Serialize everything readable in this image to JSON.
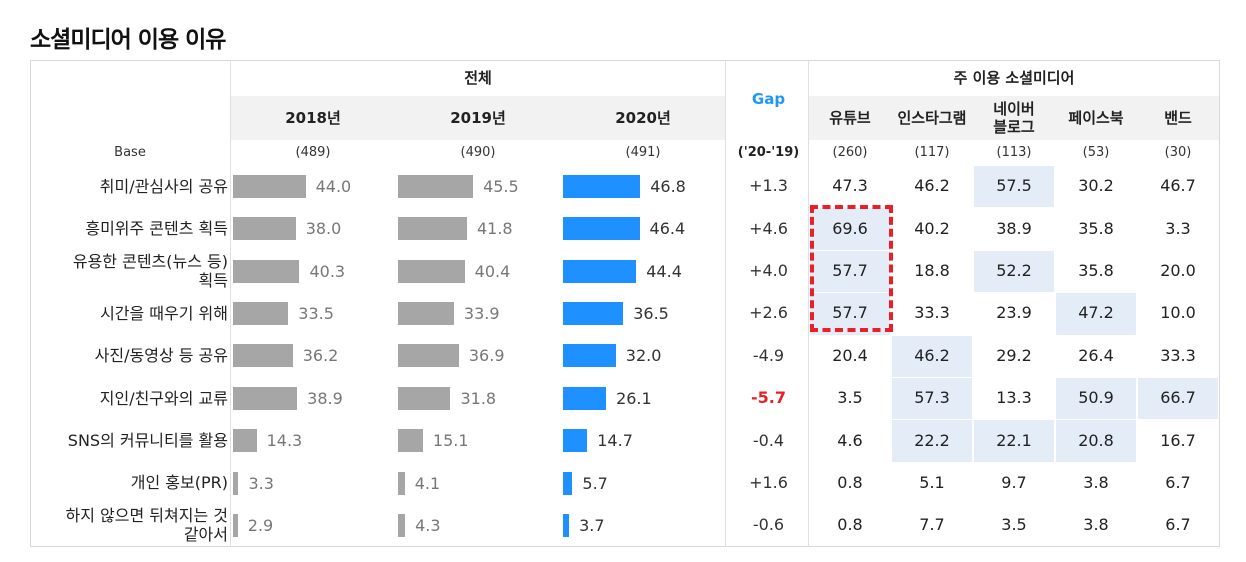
{
  "title": "소셜미디어 이용 이유",
  "headers": {
    "overall": "전체",
    "gap": "Gap",
    "platforms_group": "주 이용 소셜미디어",
    "base_label": "Base",
    "gap_base": "('20-'19)",
    "years": [
      "2018년",
      "2019년",
      "2020년"
    ],
    "platforms": [
      "유튜브",
      "인스타그램",
      "네이버\n블로그",
      "페이스북",
      "밴드"
    ],
    "year_bases": [
      "(489)",
      "(490)",
      "(491)"
    ],
    "platform_bases": [
      "(260)",
      "(117)",
      "(113)",
      "(53)",
      "(30)"
    ]
  },
  "rows": [
    {
      "label": "취미/관심사의 공유",
      "y2018": "44.0",
      "y2019": "45.5",
      "y2020": "46.8",
      "gap": "+1.3",
      "platforms": [
        "47.3",
        "46.2",
        "57.5",
        "30.2",
        "46.7"
      ]
    },
    {
      "label": "흥미위주 콘텐츠 획득",
      "y2018": "38.0",
      "y2019": "41.8",
      "y2020": "46.4",
      "gap": "+4.6",
      "platforms": [
        "69.6",
        "40.2",
        "38.9",
        "35.8",
        "3.3"
      ]
    },
    {
      "label": "유용한 콘텐츠(뉴스 등)\n획득",
      "y2018": "40.3",
      "y2019": "40.4",
      "y2020": "44.4",
      "gap": "+4.0",
      "platforms": [
        "57.7",
        "18.8",
        "52.2",
        "35.8",
        "20.0"
      ]
    },
    {
      "label": "시간을 때우기 위해",
      "y2018": "33.5",
      "y2019": "33.9",
      "y2020": "36.5",
      "gap": "+2.6",
      "platforms": [
        "57.7",
        "33.3",
        "23.9",
        "47.2",
        "10.0"
      ]
    },
    {
      "label": "사진/동영상 등 공유",
      "y2018": "36.2",
      "y2019": "36.9",
      "y2020": "32.0",
      "gap": "-4.9",
      "platforms": [
        "20.4",
        "46.2",
        "29.2",
        "26.4",
        "33.3"
      ]
    },
    {
      "label": "지인/친구와의 교류",
      "y2018": "38.9",
      "y2019": "31.8",
      "y2020": "26.1",
      "gap": "-5.7",
      "platforms": [
        "3.5",
        "57.3",
        "13.3",
        "50.9",
        "66.7"
      ]
    },
    {
      "label": "SNS의 커뮤니티를 활용",
      "y2018": "14.3",
      "y2019": "15.1",
      "y2020": "14.7",
      "gap": "-0.4",
      "platforms": [
        "4.6",
        "22.2",
        "22.1",
        "20.8",
        "16.7"
      ]
    },
    {
      "label": "개인 홍보(PR)",
      "y2018": "3.3",
      "y2019": "4.1",
      "y2020": "5.7",
      "gap": "+1.6",
      "platforms": [
        "0.8",
        "5.1",
        "9.7",
        "3.8",
        "6.7"
      ]
    },
    {
      "label": "하지 않으면 뒤쳐지는 것\n같아서",
      "y2018": "2.9",
      "y2019": "4.3",
      "y2020": "3.7",
      "gap": "-0.6",
      "platforms": [
        "0.8",
        "7.7",
        "3.5",
        "3.8",
        "6.7"
      ]
    }
  ],
  "highlight_cells": [
    [
      0,
      2
    ],
    [
      1,
      0
    ],
    [
      2,
      0
    ],
    [
      2,
      2
    ],
    [
      3,
      0
    ],
    [
      3,
      3
    ],
    [
      4,
      1
    ],
    [
      5,
      1
    ],
    [
      5,
      3
    ],
    [
      5,
      4
    ],
    [
      6,
      1
    ],
    [
      6,
      2
    ],
    [
      6,
      3
    ]
  ],
  "colors": {
    "bar_2018_2019": "#a6a6a6",
    "bar_2020": "#1e90ff",
    "highlight": "#e3ecf7",
    "gap_header": "#2196f3",
    "negative_gap": "#e8202a"
  },
  "chart_data": {
    "type": "bar",
    "orientation": "horizontal",
    "title": "소셜미디어 이용 이유",
    "categories": [
      "취미/관심사의 공유",
      "흥미위주 콘텐츠 획득",
      "유용한 콘텐츠(뉴스 등)\n획득",
      "시간을 때우기 위해",
      "사진/동영상 등 공유",
      "지인/친구와의 교류",
      "SNS의 커뮤니티를 활용",
      "개인 홍보(PR)",
      "하지 않으면 뒤쳐지는 것\n같아서"
    ],
    "series": [
      {
        "name": "2018년",
        "values": [
          44.0,
          38.0,
          40.3,
          33.5,
          36.2,
          38.9,
          14.3,
          3.3,
          2.9
        ]
      },
      {
        "name": "2019년",
        "values": [
          45.5,
          41.8,
          40.4,
          33.9,
          36.9,
          31.8,
          15.1,
          4.1,
          4.3
        ]
      },
      {
        "name": "2020년",
        "values": [
          46.8,
          46.4,
          44.4,
          36.5,
          32.0,
          26.1,
          14.7,
          5.7,
          3.7
        ]
      }
    ],
    "xlim": [
      0,
      60
    ]
  }
}
